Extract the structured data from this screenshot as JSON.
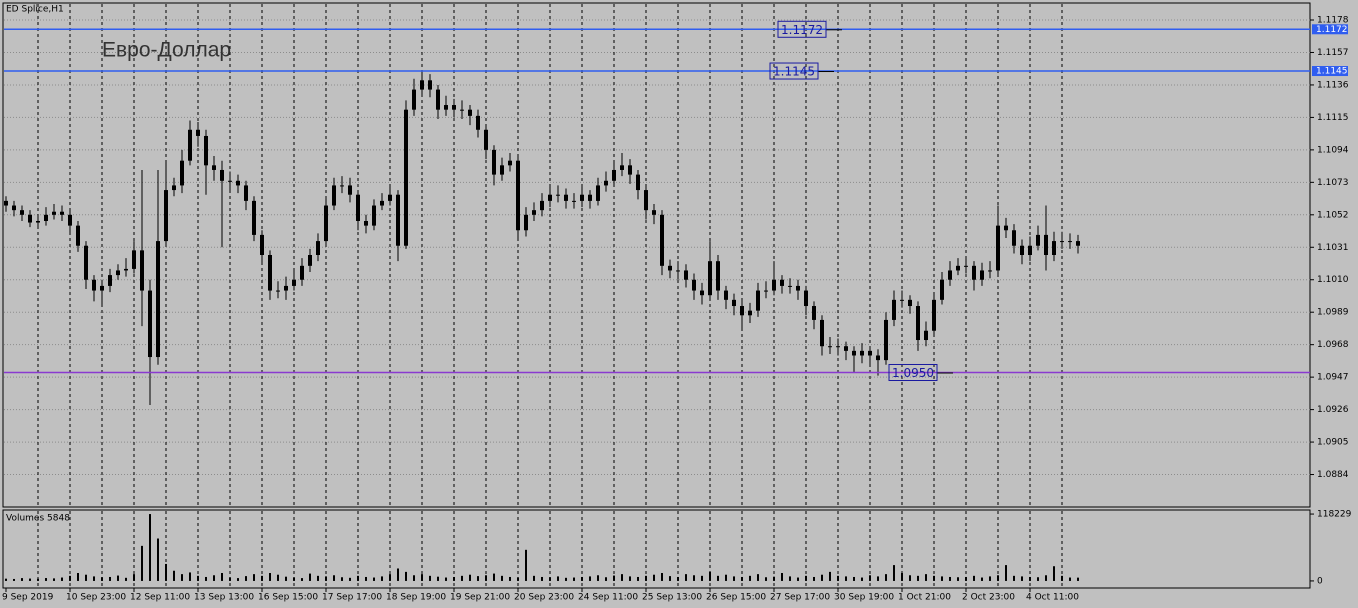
{
  "chart_data": {
    "type": "candlestick",
    "title": "ED Splice,H1",
    "annotation": "Евро-Доллар",
    "color": "#000000",
    "background": "#c0c0c0",
    "grid": true,
    "categories": [
      "9 Sep 2019",
      null,
      null,
      null,
      null,
      null,
      null,
      null,
      "10 Sep 23:00",
      null,
      null,
      null,
      null,
      null,
      null,
      null,
      "12 Sep 11:00",
      null,
      null,
      null,
      null,
      null,
      null,
      null,
      "13 Sep 13:00",
      null,
      null,
      null,
      null,
      null,
      null,
      null,
      "16 Sep 15:00",
      null,
      null,
      null,
      null,
      null,
      null,
      null,
      "17 Sep 17:00",
      null,
      null,
      null,
      null,
      null,
      null,
      null,
      "18 Sep 19:00",
      null,
      null,
      null,
      null,
      null,
      null,
      null,
      "19 Sep 21:00",
      null,
      null,
      null,
      null,
      null,
      null,
      null,
      "20 Sep 23:00",
      null,
      null,
      null,
      null,
      null,
      null,
      null,
      "24 Sep 11:00",
      null,
      null,
      null,
      null,
      null,
      null,
      null,
      "25 Sep 13:00",
      null,
      null,
      null,
      null,
      null,
      null,
      null,
      "26 Sep 15:00",
      null,
      null,
      null,
      null,
      null,
      null,
      null,
      "27 Sep 17:00",
      null,
      null,
      null,
      null,
      null,
      null,
      null,
      "30 Sep 19:00",
      null,
      null,
      null,
      null,
      null,
      null,
      null,
      "1 Oct 21:00",
      null,
      null,
      null,
      null,
      null,
      null,
      null,
      "2 Oct 23:00",
      null,
      null,
      null,
      null,
      null,
      null,
      null,
      "4 Oct 11:00",
      null,
      null,
      null,
      null,
      null,
      null
    ],
    "open": [
      1.1061,
      1.1058,
      1.1055,
      1.1052,
      1.1047,
      1.1048,
      1.1052,
      1.1054,
      1.1052,
      1.1045,
      1.1032,
      1.101,
      1.1003,
      1.1006,
      1.1013,
      1.1016,
      1.1017,
      1.1029,
      1.1003,
      1.096,
      1.1035,
      1.1068,
      1.1071,
      1.1087,
      1.1107,
      1.1103,
      1.1084,
      1.1081,
      1.1074,
      1.1074,
      1.1071,
      1.1061,
      1.1039,
      1.1026,
      1.1003,
      1.1003,
      1.1006,
      1.101,
      1.1019,
      1.1026,
      1.1035,
      1.1058,
      1.1071,
      1.1071,
      1.1065,
      1.1048,
      1.1045,
      1.1058,
      1.1061,
      1.1065,
      1.1032,
      1.112,
      1.1133,
      1.1139,
      1.1133,
      1.112,
      1.1123,
      1.112,
      1.112,
      1.1116,
      1.1107,
      1.1094,
      1.1078,
      1.1084,
      1.1087,
      1.1042,
      1.1052,
      1.1055,
      1.1061,
      1.1065,
      1.1065,
      1.1061,
      1.1061,
      1.1065,
      1.1061,
      1.1071,
      1.1074,
      1.1081,
      1.1084,
      1.1078,
      1.1068,
      1.1055,
      1.1052,
      1.1019,
      1.1016,
      1.1016,
      1.101,
      1.1003,
      1.1,
      1.1022,
      1.1003,
      1.0997,
      1.0993,
      1.0987,
      1.099,
      1.1003,
      1.1003,
      1.101,
      1.1006,
      1.1006,
      1.1003,
      1.0993,
      1.0984,
      1.0967,
      1.0967,
      1.0967,
      1.0964,
      1.0961,
      1.0964,
      1.0961,
      1.0958,
      1.0984,
      1.0997,
      1.0997,
      1.0993,
      1.0971,
      1.0977,
      1.0997,
      1.101,
      1.1016,
      1.1019,
      1.1019,
      1.101,
      1.1016,
      1.1016,
      1.1045,
      1.1042,
      1.1032,
      1.1026,
      1.1032,
      1.1039,
      1.1026,
      1.1035,
      1.1035,
      1.1035
    ],
    "high": [
      1.1064,
      1.1061,
      1.1058,
      1.1055,
      1.1052,
      1.1057,
      1.1059,
      1.1058,
      1.1055,
      1.1048,
      1.1035,
      1.1013,
      1.101,
      1.1017,
      1.102,
      1.1024,
      1.1035,
      1.1081,
      1.101,
      1.1081,
      1.1087,
      1.1076,
      1.1094,
      1.1113,
      1.1112,
      1.1107,
      1.109,
      1.1087,
      1.108,
      1.1078,
      1.1074,
      1.1064,
      1.1042,
      1.1029,
      1.1009,
      1.1012,
      1.1016,
      1.1024,
      1.103,
      1.104,
      1.1063,
      1.1076,
      1.1077,
      1.1076,
      1.1068,
      1.1052,
      1.1062,
      1.1066,
      1.1071,
      1.1068,
      1.1126,
      1.114,
      1.1145,
      1.1143,
      1.1136,
      1.1129,
      1.1127,
      1.1126,
      1.1123,
      1.112,
      1.111,
      1.1097,
      1.1089,
      1.1092,
      1.109,
      1.1057,
      1.106,
      1.1066,
      1.107,
      1.1071,
      1.1069,
      1.1066,
      1.107,
      1.1068,
      1.1076,
      1.108,
      1.1086,
      1.1092,
      1.1088,
      1.1081,
      1.1071,
      1.1059,
      1.1055,
      1.1023,
      1.1022,
      1.102,
      1.1014,
      1.1008,
      1.1035,
      1.1026,
      1.1006,
      1.1001,
      1.0997,
      1.0995,
      1.1008,
      1.1009,
      1.1022,
      1.1013,
      1.1011,
      1.101,
      1.1006,
      1.0996,
      1.0987,
      1.0973,
      1.0972,
      1.097,
      1.0967,
      1.0969,
      1.0967,
      1.0965,
      1.0989,
      1.1003,
      1.1003,
      1.1,
      1.0996,
      1.0983,
      1.1002,
      1.1015,
      1.1022,
      1.1024,
      1.1025,
      1.1022,
      1.1021,
      1.1022,
      1.1058,
      1.105,
      1.1046,
      1.1036,
      1.1038,
      1.1045,
      1.1058,
      1.1041,
      1.1041,
      1.104,
      1.1039
    ],
    "low": [
      1.1054,
      1.1051,
      1.1048,
      1.1044,
      1.1043,
      1.1045,
      1.1049,
      1.1048,
      1.104,
      1.1028,
      1.1004,
      1.0996,
      1.0994,
      1.1002,
      1.101,
      1.1012,
      1.1014,
      1.098,
      1.0929,
      1.0955,
      1.1032,
      1.1064,
      1.1066,
      1.1084,
      1.1096,
      1.1065,
      1.1074,
      1.1031,
      1.1068,
      1.1066,
      1.1055,
      1.1035,
      1.102,
      1.0997,
      1.0998,
      1.0997,
      1.1003,
      1.1006,
      1.1015,
      1.1022,
      1.1032,
      1.1055,
      1.1066,
      1.106,
      1.1042,
      1.104,
      1.1042,
      1.1055,
      1.1058,
      1.1022,
      1.103,
      1.1116,
      1.1129,
      1.1128,
      1.1114,
      1.1116,
      1.1115,
      1.1114,
      1.111,
      1.1102,
      1.1088,
      1.1071,
      1.1074,
      1.108,
      1.1036,
      1.1038,
      1.1048,
      1.1051,
      1.1057,
      1.106,
      1.1056,
      1.1056,
      1.1057,
      1.1056,
      1.1058,
      1.1067,
      1.107,
      1.1077,
      1.1072,
      1.1062,
      1.1049,
      1.1046,
      1.1013,
      1.1011,
      1.101,
      1.1005,
      1.0997,
      1.0994,
      1.0997,
      1.0997,
      1.0991,
      1.0987,
      1.0977,
      1.0982,
      1.0986,
      1.0998,
      1.1,
      1.1001,
      1.1001,
      1.0997,
      1.0987,
      1.0978,
      1.0961,
      1.0962,
      1.0961,
      1.0958,
      1.095,
      1.0956,
      1.0955,
      1.0948,
      1.0955,
      1.098,
      1.0992,
      1.0988,
      1.0964,
      1.0967,
      1.0974,
      1.0994,
      1.1006,
      1.1013,
      1.1014,
      1.1003,
      1.1006,
      1.1011,
      1.1013,
      1.1037,
      1.1027,
      1.102,
      1.1022,
      1.1029,
      1.1016,
      1.1022,
      1.103,
      1.103,
      1.1027
    ],
    "close": [
      1.1058,
      1.1055,
      1.1052,
      1.1047,
      1.1048,
      1.1052,
      1.1054,
      1.1052,
      1.1045,
      1.1032,
      1.101,
      1.1003,
      1.1006,
      1.1013,
      1.1016,
      1.1017,
      1.1029,
      1.1003,
      1.096,
      1.1035,
      1.1068,
      1.1071,
      1.1087,
      1.1107,
      1.1103,
      1.1084,
      1.1081,
      1.1074,
      1.1074,
      1.1071,
      1.1061,
      1.1039,
      1.1026,
      1.1003,
      1.1003,
      1.1006,
      1.101,
      1.1019,
      1.1026,
      1.1035,
      1.1058,
      1.1071,
      1.1071,
      1.1065,
      1.1048,
      1.1045,
      1.1058,
      1.1061,
      1.1065,
      1.1032,
      1.112,
      1.1133,
      1.1139,
      1.1133,
      1.112,
      1.1123,
      1.112,
      1.112,
      1.1116,
      1.1107,
      1.1094,
      1.1078,
      1.1084,
      1.1087,
      1.1042,
      1.1052,
      1.1055,
      1.1061,
      1.1065,
      1.1065,
      1.1061,
      1.1061,
      1.1065,
      1.1061,
      1.1071,
      1.1074,
      1.1081,
      1.1084,
      1.1078,
      1.1068,
      1.1055,
      1.1052,
      1.1019,
      1.1016,
      1.1016,
      1.101,
      1.1003,
      1.1,
      1.1022,
      1.1003,
      1.0997,
      1.0993,
      1.0987,
      1.099,
      1.1003,
      1.1003,
      1.101,
      1.1006,
      1.1006,
      1.1003,
      1.0993,
      1.0984,
      1.0967,
      1.0967,
      1.0967,
      1.0964,
      1.0961,
      1.0964,
      1.0961,
      1.0958,
      1.0984,
      1.0997,
      1.0997,
      1.0993,
      1.0971,
      1.0977,
      1.0997,
      1.101,
      1.1016,
      1.1019,
      1.1019,
      1.101,
      1.1016,
      1.1016,
      1.1045,
      1.1042,
      1.1032,
      1.1026,
      1.1032,
      1.1039,
      1.1026,
      1.1035,
      1.1035,
      1.1035,
      1.1032
    ],
    "ylim": [
      1.0863,
      1.1189
    ],
    "yticks": [
      1.1178,
      1.1157,
      1.1136,
      1.1115,
      1.1094,
      1.1073,
      1.1052,
      1.1031,
      {
        "value": 1.101,
        "label": "1.1010"
      },
      1.0989,
      1.0968,
      1.0947,
      1.0926,
      1.0905,
      1.0884
    ],
    "hlines": [
      {
        "value": 1.1172,
        "label": "1.1172",
        "color": "#2f5df0",
        "axis_label": true
      },
      {
        "value": 1.1145,
        "label": "1.1145",
        "color": "#2f5df0",
        "axis_label": true
      },
      {
        "value": 1.095,
        "label": "1.0950",
        "color": "#8a3ad0",
        "axis_label": false
      }
    ],
    "volume": {
      "title": "Volumes 5848",
      "color": "#000000",
      "ylim": [
        -12500,
        125400
      ],
      "yticks": [
        118229,
        0
      ],
      "values": [
        4000,
        3500,
        5000,
        4200,
        3800,
        5100,
        4500,
        6000,
        9000,
        14000,
        11000,
        8000,
        6500,
        7000,
        9500,
        5500,
        12000,
        62000,
        118229,
        75000,
        30000,
        18000,
        12000,
        15000,
        9000,
        7000,
        10000,
        14000,
        6000,
        5000,
        8500,
        12000,
        9000,
        14000,
        11000,
        7500,
        6000,
        5000,
        13000,
        9000,
        8000,
        10000,
        6500,
        5500,
        9000,
        7000,
        6000,
        8000,
        12000,
        22000,
        16000,
        10000,
        12000,
        9000,
        7500,
        6000,
        7000,
        9000,
        11000,
        8500,
        10000,
        13000,
        9000,
        7000,
        6000,
        55000,
        9000,
        7000,
        6500,
        8000,
        5500,
        6000,
        7000,
        8000,
        10000,
        6500,
        9500,
        12000,
        8000,
        7000,
        9000,
        11000,
        14000,
        8500,
        7000,
        12000,
        10000,
        9000,
        16000,
        9000,
        11000,
        8000,
        7000,
        9000,
        12000,
        6500,
        7500,
        14000,
        8000,
        6000,
        9000,
        7000,
        11000,
        16000,
        9000,
        8000,
        7000,
        6000,
        10000,
        8000,
        12000,
        28000,
        14000,
        10000,
        9000,
        12000,
        9000,
        8000,
        7000,
        6500,
        7000,
        9000,
        6000,
        8000,
        10000,
        28000,
        9000,
        8000,
        7000,
        6500,
        10000,
        26000,
        9000,
        6000,
        5848
      ]
    }
  }
}
